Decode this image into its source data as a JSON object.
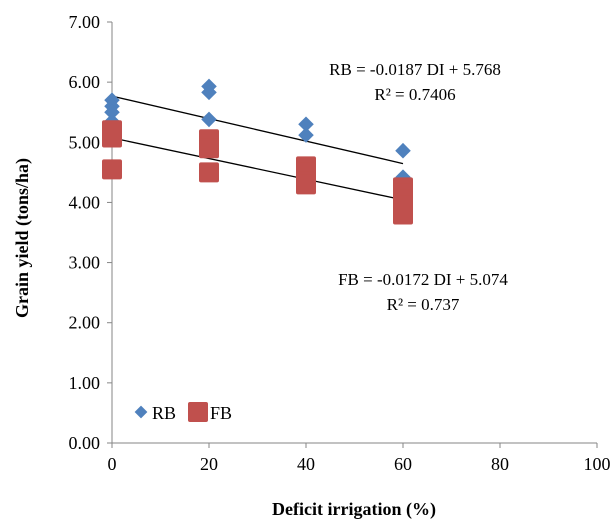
{
  "chart_data": {
    "type": "scatter",
    "xlabel": "Deficit irrigation (%)",
    "ylabel": "Grain yield (tons/ha)",
    "xlim": [
      0,
      100
    ],
    "ylim": [
      0,
      7
    ],
    "x_ticks": [
      "0",
      "20",
      "40",
      "60",
      "80",
      "100"
    ],
    "y_ticks": [
      "0.00",
      "1.00",
      "2.00",
      "3.00",
      "4.00",
      "5.00",
      "6.00",
      "7.00"
    ],
    "grid": false,
    "legend_position": "bottom-left",
    "series": [
      {
        "name": "RB",
        "color": "#4F81BD",
        "marker": "diamond",
        "points": [
          [
            0,
            5.7
          ],
          [
            0,
            5.6
          ],
          [
            0,
            5.5
          ],
          [
            0,
            5.35
          ],
          [
            20,
            5.93
          ],
          [
            20,
            5.83
          ],
          [
            20,
            5.38
          ],
          [
            40,
            5.3
          ],
          [
            40,
            5.12
          ],
          [
            60,
            4.86
          ],
          [
            60,
            4.42
          ]
        ]
      },
      {
        "name": "FB",
        "color": "#C0504D",
        "marker": "square",
        "points": [
          [
            0,
            5.2
          ],
          [
            0,
            5.15
          ],
          [
            0,
            5.08
          ],
          [
            0,
            4.55
          ],
          [
            20,
            5.05
          ],
          [
            20,
            4.98
          ],
          [
            20,
            4.9
          ],
          [
            20,
            4.5
          ],
          [
            40,
            4.6
          ],
          [
            40,
            4.5
          ],
          [
            40,
            4.35
          ],
          [
            40,
            4.3
          ],
          [
            60,
            4.25
          ],
          [
            60,
            4.15
          ],
          [
            60,
            4.05
          ],
          [
            60,
            3.95
          ],
          [
            60,
            3.8
          ]
        ]
      }
    ],
    "trendlines": [
      {
        "series": "RB",
        "slope": -0.0187,
        "intercept": 5.768,
        "x_range": [
          0,
          60
        ]
      },
      {
        "series": "FB",
        "slope": -0.0172,
        "intercept": 5.074,
        "x_range": [
          0,
          60
        ]
      }
    ],
    "annotations": [
      {
        "text": "RB = -0.0187 DI + 5.768"
      },
      {
        "text": "R² = 0.7406"
      },
      {
        "text": "FB = -0.0172 DI + 5.074"
      },
      {
        "text": "R² = 0.737"
      }
    ]
  }
}
